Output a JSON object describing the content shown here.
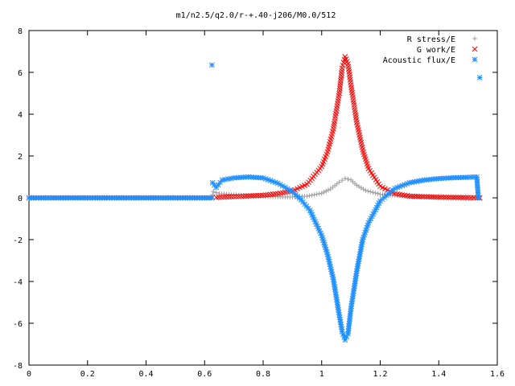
{
  "chart_data": {
    "type": "scatter",
    "title": "m1/n2.5/q2.0/r-+.40-j206/M0.0/512",
    "xlabel": "",
    "ylabel": "",
    "xlim": [
      0,
      1.6
    ],
    "ylim": [
      -8,
      8
    ],
    "grid": false,
    "legend_position": "top-right",
    "xticks": [
      "0",
      "0.2",
      "0.4",
      "0.6",
      "0.8",
      "1",
      "1.2",
      "1.4",
      "1.6"
    ],
    "yticks": [
      "8",
      "6",
      "4",
      "2",
      "0",
      "-2",
      "-4",
      "-6",
      "-8"
    ],
    "series": [
      {
        "name": "R stress/E",
        "marker": "plus",
        "color": "#a0a0a0",
        "points": [
          [
            0.0,
            0.0
          ],
          [
            0.1,
            0.0
          ],
          [
            0.2,
            0.0
          ],
          [
            0.3,
            0.0
          ],
          [
            0.4,
            0.0
          ],
          [
            0.5,
            0.0
          ],
          [
            0.6,
            0.0
          ],
          [
            0.625,
            0.0
          ],
          [
            0.63,
            0.3
          ],
          [
            0.65,
            0.2
          ],
          [
            0.7,
            0.15
          ],
          [
            0.75,
            0.1
          ],
          [
            0.8,
            0.07
          ],
          [
            0.85,
            0.05
          ],
          [
            0.9,
            0.04
          ],
          [
            0.95,
            0.08
          ],
          [
            1.0,
            0.22
          ],
          [
            1.03,
            0.42
          ],
          [
            1.06,
            0.75
          ],
          [
            1.08,
            0.93
          ],
          [
            1.1,
            0.85
          ],
          [
            1.12,
            0.6
          ],
          [
            1.15,
            0.35
          ],
          [
            1.2,
            0.17
          ],
          [
            1.3,
            0.08
          ],
          [
            1.4,
            0.04
          ],
          [
            1.5,
            0.02
          ],
          [
            1.54,
            0.0
          ]
        ]
      },
      {
        "name": "G work/E",
        "marker": "cross",
        "color": "#ff0000",
        "points": [
          [
            0.0,
            0.0
          ],
          [
            0.1,
            0.0
          ],
          [
            0.2,
            0.0
          ],
          [
            0.3,
            0.0
          ],
          [
            0.4,
            0.0
          ],
          [
            0.5,
            0.0
          ],
          [
            0.6,
            0.0
          ],
          [
            0.625,
            0.0
          ],
          [
            0.64,
            0.02
          ],
          [
            0.7,
            0.06
          ],
          [
            0.8,
            0.12
          ],
          [
            0.85,
            0.2
          ],
          [
            0.9,
            0.33
          ],
          [
            0.95,
            0.65
          ],
          [
            1.0,
            1.5
          ],
          [
            1.02,
            2.2
          ],
          [
            1.04,
            3.3
          ],
          [
            1.06,
            5.0
          ],
          [
            1.07,
            6.2
          ],
          [
            1.08,
            6.75
          ],
          [
            1.09,
            6.4
          ],
          [
            1.1,
            5.4
          ],
          [
            1.12,
            3.6
          ],
          [
            1.14,
            2.3
          ],
          [
            1.16,
            1.4
          ],
          [
            1.2,
            0.55
          ],
          [
            1.25,
            0.2
          ],
          [
            1.3,
            0.08
          ],
          [
            1.4,
            0.03
          ],
          [
            1.5,
            0.01
          ],
          [
            1.54,
            0.0
          ]
        ]
      },
      {
        "name": "Acoustic flux/E",
        "marker": "star",
        "color": "#1e8fff",
        "points": [
          [
            0.0,
            0.0
          ],
          [
            0.1,
            0.0
          ],
          [
            0.2,
            0.0
          ],
          [
            0.3,
            0.0
          ],
          [
            0.4,
            0.0
          ],
          [
            0.5,
            0.0
          ],
          [
            0.6,
            0.0
          ],
          [
            0.625,
            0.0
          ],
          [
            0.625,
            6.35
          ],
          [
            0.627,
            0.72
          ],
          [
            0.64,
            0.5
          ],
          [
            0.66,
            0.85
          ],
          [
            0.7,
            0.95
          ],
          [
            0.75,
            1.0
          ],
          [
            0.8,
            0.95
          ],
          [
            0.85,
            0.7
          ],
          [
            0.9,
            0.3
          ],
          [
            0.93,
            -0.1
          ],
          [
            0.96,
            -0.6
          ],
          [
            1.0,
            -1.8
          ],
          [
            1.02,
            -2.7
          ],
          [
            1.04,
            -3.9
          ],
          [
            1.06,
            -5.6
          ],
          [
            1.07,
            -6.4
          ],
          [
            1.08,
            -6.8
          ],
          [
            1.09,
            -6.5
          ],
          [
            1.1,
            -5.3
          ],
          [
            1.12,
            -3.5
          ],
          [
            1.14,
            -2.0
          ],
          [
            1.16,
            -1.2
          ],
          [
            1.2,
            -0.15
          ],
          [
            1.25,
            0.45
          ],
          [
            1.3,
            0.72
          ],
          [
            1.35,
            0.85
          ],
          [
            1.4,
            0.92
          ],
          [
            1.45,
            0.96
          ],
          [
            1.5,
            0.98
          ],
          [
            1.53,
            1.0
          ],
          [
            1.535,
            0.0
          ],
          [
            1.54,
            5.75
          ]
        ]
      }
    ]
  }
}
